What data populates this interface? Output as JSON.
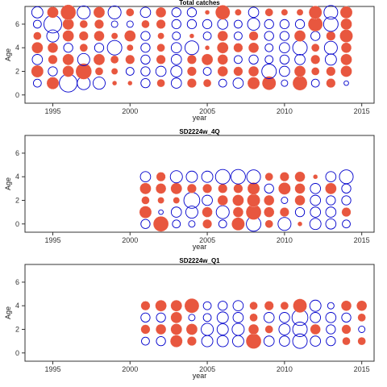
{
  "chart_data": [
    {
      "type": "scatter",
      "title": "Total catches",
      "xlabel": "year",
      "ylabel": "Age",
      "xlim": [
        1993.2,
        2015.8
      ],
      "ylim": [
        -0.7,
        7.5
      ],
      "xticks": [
        1995,
        2000,
        2005,
        2010,
        2015
      ],
      "yticks": [
        0,
        2,
        4,
        6
      ],
      "x": [
        1994,
        1995,
        1996,
        1997,
        1998,
        1999,
        2000,
        2001,
        2002,
        2003,
        2004,
        2005,
        2006,
        2007,
        2008,
        2009,
        2010,
        2011,
        2012,
        2013,
        2014
      ],
      "ages": [
        1,
        2,
        3,
        4,
        5,
        6,
        7
      ],
      "residuals": [
        [
          -0.3,
          0.7,
          -0.5,
          0.6,
          0.3,
          -0.3,
          -0.6
        ],
        [
          0.7,
          -0.4,
          0.4,
          0.5,
          -0.7,
          -1.5,
          0.6
        ],
        [
          -1.5,
          0.6,
          0.6,
          -0.4,
          0.6,
          0.6,
          1.1
        ],
        [
          -0.8,
          1.2,
          -0.7,
          0.3,
          0.4,
          0.3,
          -0.8
        ],
        [
          -0.7,
          0.3,
          0.6,
          -0.4,
          0.5,
          0.4,
          0.6
        ],
        [
          0.1,
          0.2,
          0.3,
          -1.0,
          0.2,
          -0.2,
          -0.8
        ],
        [
          0.1,
          -0.3,
          0.4,
          0.2,
          0.6,
          -0.2,
          0.3
        ],
        [
          -0.4,
          -0.4,
          -0.4,
          -0.4,
          -0.4,
          0.3,
          -0.5
        ],
        [
          0.3,
          -0.5,
          0.4,
          0.3,
          0.2,
          0.4,
          0.5
        ],
        [
          -0.5,
          -0.6,
          -0.5,
          -0.5,
          -0.3,
          -0.4,
          -0.4
        ],
        [
          0.4,
          0.4,
          0.4,
          -0.9,
          0.1,
          -0.4,
          -0.4
        ],
        [
          0.3,
          -0.3,
          0.6,
          0.1,
          -0.3,
          -0.4,
          0.1
        ],
        [
          -0.3,
          0.5,
          0.5,
          0.6,
          0.5,
          -0.5,
          1.0
        ],
        [
          -0.5,
          0.4,
          -0.3,
          0.4,
          -0.3,
          -0.3,
          0.2
        ],
        [
          0.7,
          0.5,
          -0.4,
          0.5,
          0.4,
          -0.7,
          -0.5
        ],
        [
          0.9,
          -1.0,
          -0.3,
          -0.3,
          -0.4,
          -0.4,
          0.3
        ],
        [
          -0.2,
          -0.5,
          -0.4,
          -0.5,
          -0.4,
          -0.4,
          0.2
        ],
        [
          1.0,
          0.6,
          -0.5,
          -1.0,
          0.6,
          -0.4,
          0.2
        ],
        [
          -0.3,
          0.3,
          0.4,
          0.3,
          -0.4,
          1.0,
          0.8
        ],
        [
          0.4,
          0.4,
          -0.6,
          -0.8,
          0.4,
          -1.0,
          -0.9
        ],
        [
          -0.1,
          0.6,
          0.6,
          0.5,
          0.8,
          0.6,
          0.7
        ]
      ]
    },
    {
      "type": "scatter",
      "title": "SD2224w_4Q",
      "xlabel": "year",
      "ylabel": "Age",
      "xlim": [
        1993.2,
        2015.8
      ],
      "ylim": [
        -0.7,
        7.5
      ],
      "xticks": [
        1995,
        2000,
        2005,
        2010,
        2015
      ],
      "yticks": [
        0,
        2,
        4,
        6
      ],
      "x": [
        2001,
        2002,
        2003,
        2004,
        2005,
        2006,
        2007,
        2008,
        2009,
        2010,
        2011,
        2012,
        2013,
        2014
      ],
      "ages": [
        0,
        1,
        2,
        3,
        4
      ],
      "residuals": [
        [
          -0.4,
          0.7,
          0.3,
          0.6,
          -0.5
        ],
        [
          1.1,
          -0.1,
          0.2,
          0.5,
          0.4
        ],
        [
          -0.3,
          -0.5,
          0.2,
          0.6,
          -0.7
        ],
        [
          -0.2,
          -0.7,
          -1.2,
          0.4,
          -0.6
        ],
        [
          0.4,
          0.5,
          -0.5,
          0.4,
          -0.6
        ],
        [
          -0.3,
          -0.8,
          0.5,
          0.4,
          -1.0
        ],
        [
          0.8,
          0.5,
          0.6,
          0.4,
          -1.0
        ],
        [
          -1.0,
          1.1,
          0.8,
          0.7,
          -0.9
        ],
        [
          0.3,
          0.5,
          0.5,
          -0.4,
          0.3
        ],
        [
          -0.8,
          0.4,
          -0.2,
          0.7,
          0.4
        ],
        [
          0.1,
          -0.4,
          0.5,
          0.5,
          0.5
        ],
        [
          -0.6,
          -0.5,
          -0.5,
          -0.5,
          0.1
        ],
        [
          -0.5,
          -0.5,
          -0.4,
          0.6,
          -0.5
        ],
        [
          -0.3,
          0.4,
          -0.4,
          -0.4,
          -0.9
        ]
      ]
    },
    {
      "type": "scatter",
      "title": "SD2224w_Q1",
      "xlabel": "year",
      "ylabel": "Age",
      "xlim": [
        1993.2,
        2015.8
      ],
      "ylim": [
        -0.7,
        7.5
      ],
      "xticks": [
        1995,
        2000,
        2005,
        2010,
        2015
      ],
      "yticks": [
        0,
        2,
        4,
        6
      ],
      "x": [
        2001,
        2002,
        2003,
        2004,
        2005,
        2006,
        2007,
        2008,
        2009,
        2010,
        2011,
        2012,
        2013,
        2014,
        2015
      ],
      "ages": [
        1,
        2,
        3,
        4
      ],
      "residuals": [
        [
          -0.3,
          0.4,
          -0.4,
          0.4
        ],
        [
          -0.4,
          0.5,
          -0.4,
          0.6
        ],
        [
          0.7,
          0.6,
          0.6,
          0.6
        ],
        [
          0.4,
          0.6,
          -0.2,
          1.0
        ],
        [
          -0.6,
          -0.7,
          -0.3,
          -0.3
        ],
        [
          -0.6,
          -0.6,
          -0.6,
          -0.4
        ],
        [
          -0.6,
          -0.7,
          -0.5,
          -0.5
        ],
        [
          1.1,
          0.5,
          0.3,
          0.3
        ],
        [
          -0.5,
          0.3,
          -0.5,
          0.4
        ],
        [
          -0.5,
          -0.6,
          -0.5,
          0.3
        ],
        [
          -1.0,
          -1.0,
          -1.2,
          0.9
        ],
        [
          -0.5,
          0.5,
          -0.5,
          -0.6
        ],
        [
          -0.4,
          -0.4,
          -0.5,
          -0.2
        ],
        [
          0.3,
          0.4,
          -0.4,
          0.5
        ],
        [
          0.3,
          -0.2,
          0.3,
          0.5
        ]
      ]
    }
  ],
  "colors": {
    "positive": "#e8573f",
    "negative": "#0000cc",
    "axis": "#333333"
  }
}
